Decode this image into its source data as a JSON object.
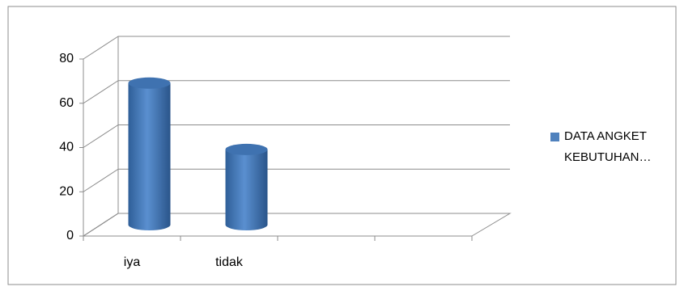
{
  "chart_data": {
    "type": "bar3d",
    "categories": [
      "iya",
      "tidak",
      null,
      null
    ],
    "series": [
      {
        "name": "DATA ANGKET KEBUTUHAN…",
        "color": "#4f81bd",
        "values": [
          64,
          34,
          null,
          null
        ]
      }
    ],
    "ylim": [
      0,
      80
    ],
    "yticks": [
      0,
      20,
      40,
      60,
      80
    ],
    "grid": true,
    "legend": "right"
  }
}
